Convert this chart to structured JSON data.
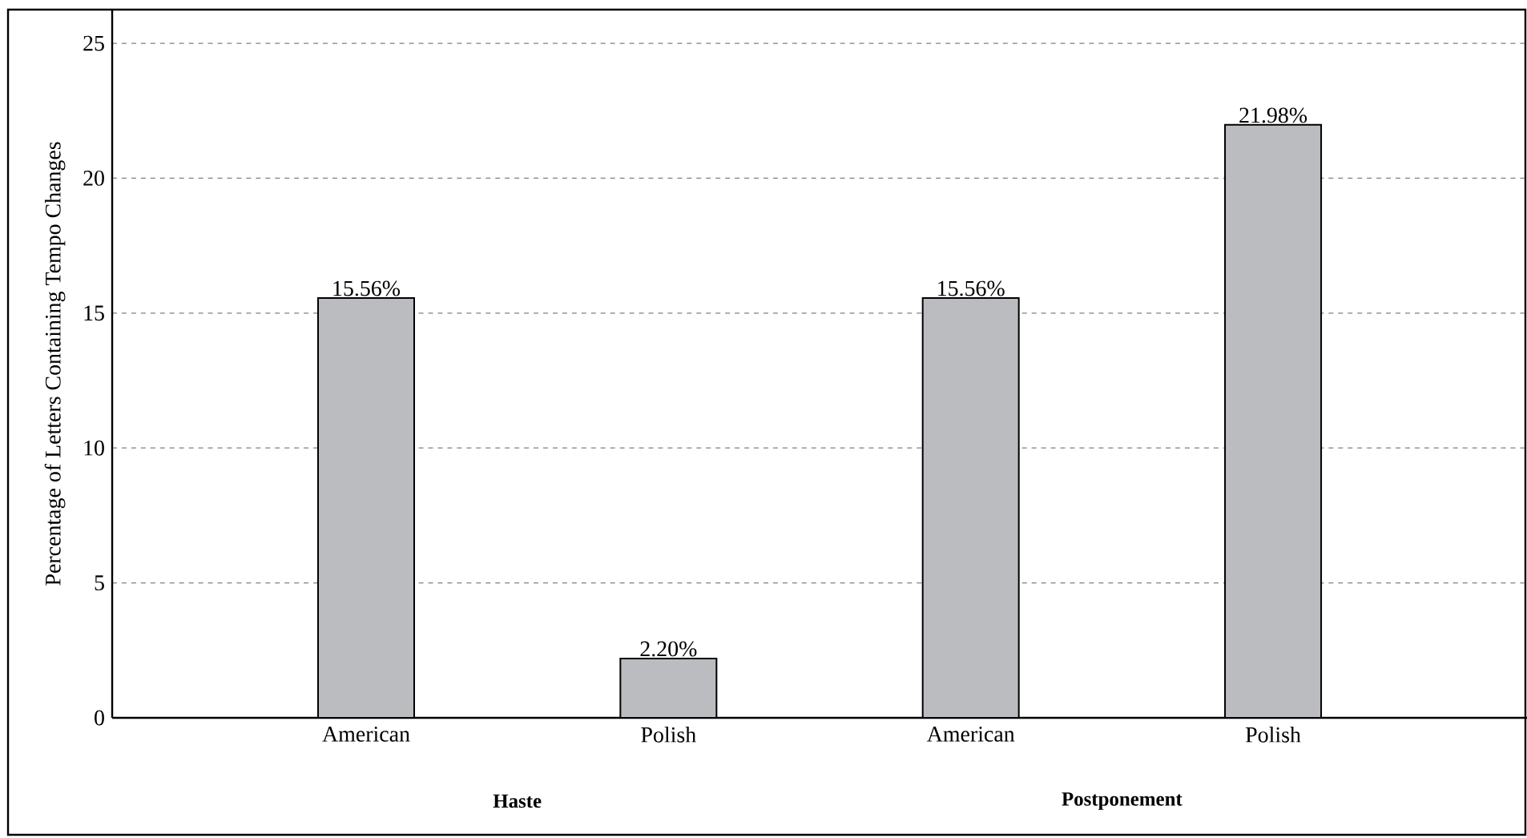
{
  "chart_data": {
    "type": "bar",
    "ylabel": "Percentage of Letters Containing Tempo Changes",
    "categories": [
      "American",
      "Polish",
      "American",
      "Polish"
    ],
    "values": [
      15.56,
      2.2,
      15.56,
      21.98
    ],
    "value_labels": [
      "15.56%",
      "2.20%",
      "15.56%",
      "21.98%"
    ],
    "color": "#bbbcc0",
    "ylim": [
      0,
      26.25
    ],
    "yticks": [
      0,
      5,
      10,
      15,
      20,
      25
    ],
    "grid": "y",
    "annotations": [
      "Haste",
      "Postponement"
    ]
  }
}
